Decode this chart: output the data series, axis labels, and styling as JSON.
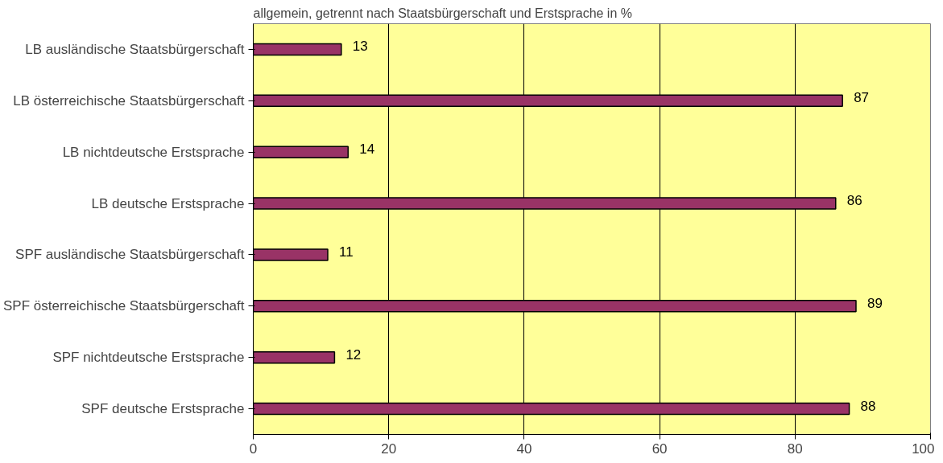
{
  "chart_data": {
    "type": "bar",
    "orientation": "horizontal",
    "title": "allgemein, getrennt nach Staatsbürgerschaft und Erstsprache in %",
    "categories": [
      "LB ausländische Staatsbürgerschaft",
      "LB österreichische Staatsbürgerschaft",
      "LB nichtdeutsche Erstsprache",
      "LB deutsche Erstsprache",
      "SPF ausländische Staatsbürgerschaft",
      "SPF österreichische Staatsbürgerschaft",
      "SPF nichtdeutsche Erstsprache",
      "SPF deutsche Erstsprache"
    ],
    "values": [
      13,
      87,
      14,
      86,
      11,
      89,
      12,
      88
    ],
    "color": "#993366",
    "xlim": [
      0,
      100
    ],
    "xticks": [
      0,
      20,
      40,
      60,
      80,
      100
    ],
    "grid": "x",
    "data_labels": true
  }
}
